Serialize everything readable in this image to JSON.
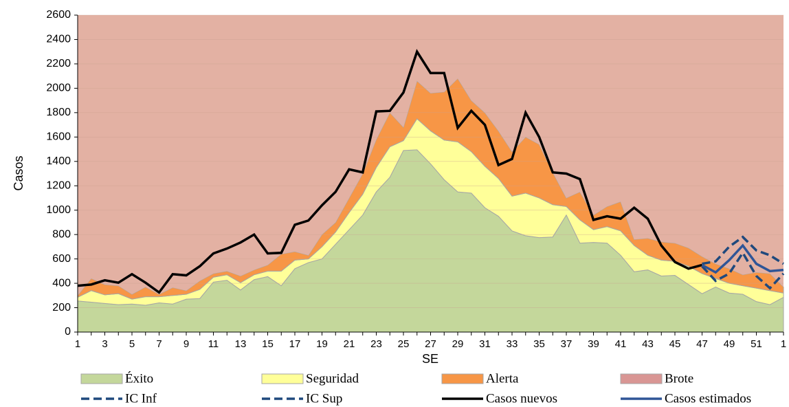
{
  "chart_data": {
    "type": "area",
    "x_label": "SE",
    "y_label": "Casos",
    "categories": [
      "1",
      null,
      "3",
      null,
      "5",
      null,
      "7",
      null,
      "9",
      null,
      "11",
      null,
      "13",
      null,
      "15",
      null,
      "17",
      null,
      "19",
      null,
      "21",
      null,
      "23",
      null,
      "25",
      null,
      "27",
      null,
      "29",
      null,
      "31",
      null,
      "33",
      null,
      "35",
      null,
      "37",
      null,
      "39",
      null,
      "41",
      null,
      "43",
      null,
      "45",
      null,
      "47",
      null,
      "49",
      null,
      "51",
      null,
      "1"
    ],
    "ylim": [
      0,
      2600
    ],
    "yticks": [
      0,
      200,
      400,
      600,
      800,
      1000,
      1200,
      1400,
      1600,
      1800,
      2000,
      2200,
      2400,
      2600
    ],
    "series": [
      {
        "name": "Éxito",
        "color": "#c4d79b",
        "stacked": true,
        "values": [
          255,
          245,
          235,
          225,
          230,
          220,
          240,
          230,
          270,
          275,
          410,
          425,
          345,
          430,
          455,
          380,
          520,
          570,
          600,
          720,
          840,
          960,
          1150,
          1270,
          1490,
          1495,
          1380,
          1250,
          1150,
          1140,
          1020,
          950,
          830,
          790,
          775,
          780,
          960,
          730,
          735,
          730,
          630,
          495,
          510,
          460,
          465,
          390,
          315,
          370,
          320,
          310,
          250,
          225,
          285
        ]
      },
      {
        "name": "Seguridad",
        "color": "#ffff99",
        "stacked": true,
        "values": [
          30,
          95,
          70,
          90,
          40,
          70,
          50,
          70,
          40,
          75,
          40,
          45,
          60,
          40,
          45,
          120,
          70,
          30,
          100,
          100,
          140,
          170,
          200,
          250,
          80,
          255,
          270,
          325,
          410,
          340,
          340,
          310,
          285,
          350,
          325,
          265,
          70,
          190,
          105,
          135,
          200,
          215,
          120,
          130,
          115,
          150,
          165,
          70,
          80,
          70,
          110,
          115,
          35
        ]
      },
      {
        "name": "Alerta",
        "color": "#f79646",
        "stacked": true,
        "values": [
          15,
          100,
          85,
          65,
          40,
          80,
          20,
          65,
          30,
          70,
          30,
          30,
          55,
          40,
          50,
          140,
          70,
          30,
          100,
          80,
          120,
          170,
          230,
          280,
          110,
          310,
          310,
          395,
          520,
          420,
          440,
          390,
          365,
          460,
          440,
          265,
          70,
          230,
          120,
          165,
          240,
          50,
          140,
          150,
          150,
          150,
          140,
          120,
          120,
          90,
          130,
          140,
          50
        ]
      },
      {
        "name": "Brote",
        "color": "#e3b1a3",
        "stacked": true,
        "fill_to_top": true
      },
      {
        "name": "IC Inf",
        "color": "#1f497d",
        "dashed": true,
        "values": [
          null,
          null,
          null,
          null,
          null,
          null,
          null,
          null,
          null,
          null,
          null,
          null,
          null,
          null,
          null,
          null,
          null,
          null,
          null,
          null,
          null,
          null,
          null,
          null,
          null,
          null,
          null,
          null,
          null,
          null,
          null,
          null,
          null,
          null,
          null,
          null,
          null,
          null,
          null,
          null,
          null,
          null,
          null,
          null,
          null,
          null,
          540,
          420,
          480,
          650,
          460,
          360,
          480
        ]
      },
      {
        "name": "IC Sup",
        "color": "#1f497d",
        "dashed": true,
        "values": [
          null,
          null,
          null,
          null,
          null,
          null,
          null,
          null,
          null,
          null,
          null,
          null,
          null,
          null,
          null,
          null,
          null,
          null,
          null,
          null,
          null,
          null,
          null,
          null,
          null,
          null,
          null,
          null,
          null,
          null,
          null,
          null,
          null,
          null,
          null,
          null,
          null,
          null,
          null,
          null,
          null,
          null,
          null,
          null,
          null,
          null,
          560,
          580,
          700,
          780,
          670,
          630,
          560
        ]
      },
      {
        "name": "Casos nuevos",
        "color": "#000000",
        "values": [
          380,
          390,
          425,
          405,
          475,
          405,
          325,
          475,
          465,
          540,
          645,
          685,
          735,
          800,
          645,
          650,
          880,
          915,
          1040,
          1150,
          1335,
          1310,
          1810,
          1815,
          1965,
          2300,
          2125,
          2125,
          1675,
          1815,
          1700,
          1370,
          1420,
          1800,
          1600,
          1310,
          1300,
          1255,
          920,
          950,
          930,
          1020,
          930,
          710,
          575,
          520,
          550,
          null,
          null,
          null,
          null,
          null,
          null
        ]
      },
      {
        "name": "Casos estimados",
        "color": "#2f5597",
        "values": [
          null,
          null,
          null,
          null,
          null,
          null,
          null,
          null,
          null,
          null,
          null,
          null,
          null,
          null,
          null,
          null,
          null,
          null,
          null,
          null,
          null,
          null,
          null,
          null,
          null,
          null,
          null,
          null,
          null,
          null,
          null,
          null,
          null,
          null,
          null,
          null,
          null,
          null,
          null,
          null,
          null,
          null,
          null,
          null,
          null,
          null,
          550,
          490,
          590,
          710,
          560,
          500,
          510
        ]
      }
    ]
  }
}
